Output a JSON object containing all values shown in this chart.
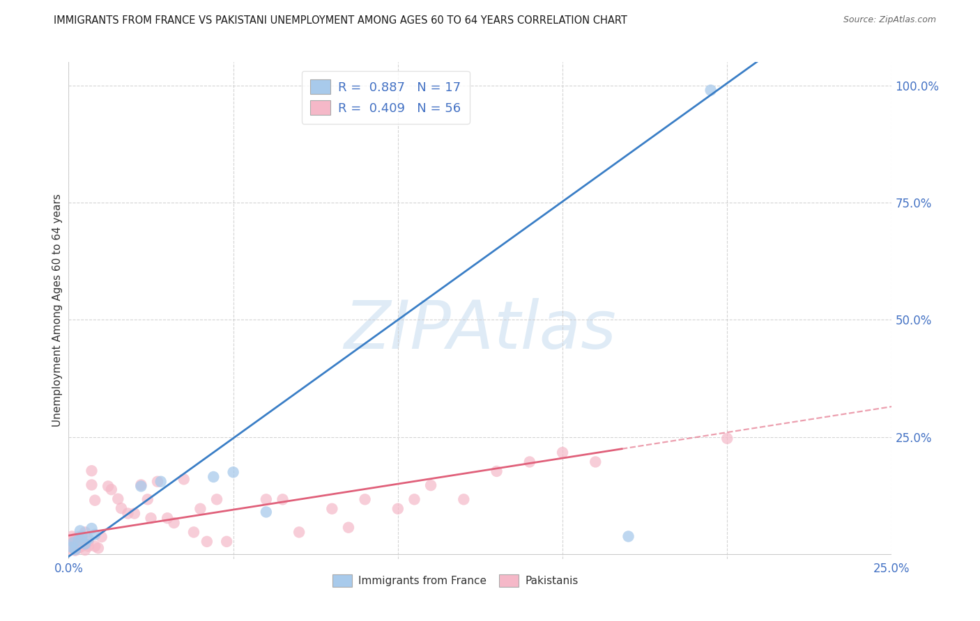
{
  "title": "IMMIGRANTS FROM FRANCE VS PAKISTANI UNEMPLOYMENT AMONG AGES 60 TO 64 YEARS CORRELATION CHART",
  "source": "Source: ZipAtlas.com",
  "ylabel": "Unemployment Among Ages 60 to 64 years",
  "xlim": [
    0.0,
    0.25
  ],
  "ylim": [
    -0.01,
    1.05
  ],
  "xticks": [
    0.0,
    0.05,
    0.1,
    0.15,
    0.2,
    0.25
  ],
  "yticks": [
    0.25,
    0.5,
    0.75,
    1.0
  ],
  "blue_color": "#a8caeb",
  "blue_edge_color": "#6aaad4",
  "pink_color": "#f5b8c8",
  "pink_edge_color": "#e890a8",
  "blue_line_color": "#3a7ec6",
  "pink_line_color": "#e0607a",
  "axis_tick_color": "#4472c4",
  "watermark": "ZIPAtlas",
  "legend_r1": "R =  0.887",
  "legend_n1": "N = 17",
  "legend_r2": "R =  0.409",
  "legend_n2": "N = 56",
  "legend_label1": "Immigrants from France",
  "legend_label2": "Pakistanis",
  "background_color": "#ffffff",
  "grid_color": "#d0d0d0",
  "blue_x": [
    0.001,
    0.0015,
    0.002,
    0.003,
    0.0035,
    0.004,
    0.005,
    0.006,
    0.007,
    0.008,
    0.022,
    0.028,
    0.044,
    0.05,
    0.06,
    0.17,
    0.195
  ],
  "blue_y": [
    0.015,
    0.025,
    0.01,
    0.03,
    0.05,
    0.038,
    0.022,
    0.033,
    0.055,
    0.042,
    0.145,
    0.155,
    0.165,
    0.175,
    0.09,
    0.038,
    0.99
  ],
  "pink_x": [
    0.001,
    0.001,
    0.001,
    0.001,
    0.002,
    0.002,
    0.002,
    0.003,
    0.003,
    0.003,
    0.004,
    0.004,
    0.005,
    0.005,
    0.005,
    0.006,
    0.006,
    0.007,
    0.007,
    0.008,
    0.008,
    0.009,
    0.01,
    0.012,
    0.013,
    0.015,
    0.016,
    0.018,
    0.02,
    0.022,
    0.024,
    0.025,
    0.027,
    0.03,
    0.032,
    0.035,
    0.038,
    0.04,
    0.042,
    0.045,
    0.048,
    0.06,
    0.065,
    0.07,
    0.08,
    0.085,
    0.09,
    0.1,
    0.105,
    0.11,
    0.12,
    0.13,
    0.14,
    0.15,
    0.16,
    0.2
  ],
  "pink_y": [
    0.01,
    0.018,
    0.028,
    0.038,
    0.008,
    0.022,
    0.034,
    0.013,
    0.022,
    0.037,
    0.017,
    0.028,
    0.009,
    0.022,
    0.047,
    0.017,
    0.027,
    0.148,
    0.178,
    0.115,
    0.017,
    0.013,
    0.037,
    0.145,
    0.138,
    0.118,
    0.098,
    0.087,
    0.087,
    0.148,
    0.117,
    0.077,
    0.155,
    0.077,
    0.067,
    0.16,
    0.047,
    0.097,
    0.027,
    0.117,
    0.027,
    0.117,
    0.117,
    0.047,
    0.097,
    0.057,
    0.117,
    0.097,
    0.117,
    0.147,
    0.117,
    0.177,
    0.197,
    0.217,
    0.197,
    0.247
  ],
  "blue_reg_slope": 5.05,
  "blue_reg_intercept": -0.005,
  "pink_reg_slope": 1.1,
  "pink_reg_intercept": 0.04
}
